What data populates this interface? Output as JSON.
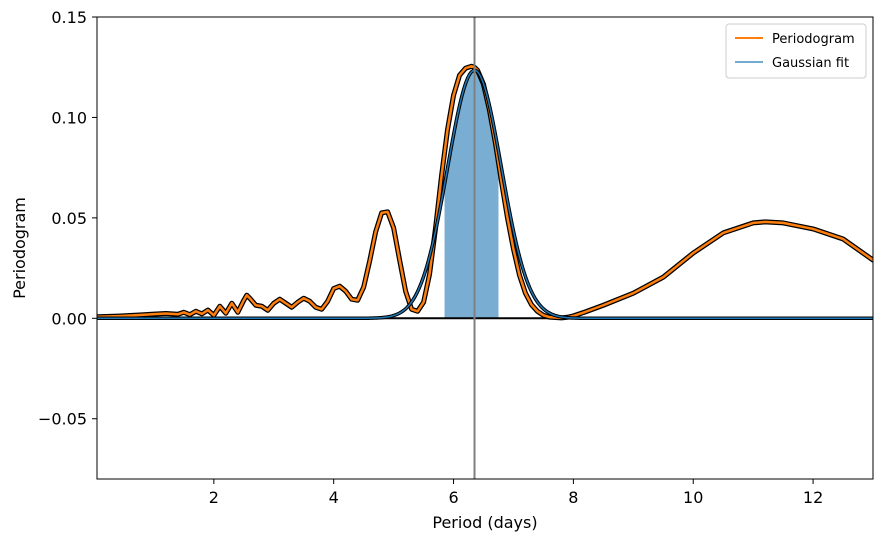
{
  "chart_data": {
    "type": "line",
    "title": "",
    "xlabel": "Period (days)",
    "ylabel": "Periodogram",
    "xlim": [
      0.05,
      13.0
    ],
    "ylim": [
      -0.08,
      0.15
    ],
    "x_ticks": [
      2,
      4,
      6,
      8,
      10,
      12
    ],
    "x_tick_labels": [
      "2",
      "4",
      "6",
      "8",
      "10",
      "12"
    ],
    "y_ticks": [
      -0.05,
      0.0,
      0.05,
      0.1,
      0.15
    ],
    "y_tick_labels": [
      "−0.05",
      "0.00",
      "0.05",
      "0.10",
      "0.15"
    ],
    "grid": false,
    "legend_position": "top-right",
    "series": [
      {
        "name": "Periodogram",
        "color": "#ff7f0e",
        "x": [
          0.05,
          0.2,
          0.4,
          0.6,
          0.8,
          1.0,
          1.2,
          1.4,
          1.5,
          1.6,
          1.7,
          1.8,
          1.9,
          2.0,
          2.1,
          2.2,
          2.3,
          2.4,
          2.5,
          2.55,
          2.6,
          2.7,
          2.8,
          2.9,
          3.0,
          3.1,
          3.2,
          3.3,
          3.4,
          3.5,
          3.6,
          3.7,
          3.8,
          3.9,
          4.0,
          4.1,
          4.2,
          4.3,
          4.4,
          4.5,
          4.6,
          4.7,
          4.8,
          4.9,
          5.0,
          5.1,
          5.2,
          5.3,
          5.4,
          5.5,
          5.6,
          5.7,
          5.8,
          5.9,
          6.0,
          6.1,
          6.2,
          6.3,
          6.35,
          6.4,
          6.5,
          6.6,
          6.7,
          6.8,
          6.9,
          7.0,
          7.1,
          7.2,
          7.3,
          7.4,
          7.5,
          7.6,
          7.7,
          7.8,
          7.9,
          8.0,
          8.2,
          8.5,
          9.0,
          9.5,
          10.0,
          10.5,
          11.0,
          11.2,
          11.5,
          12.0,
          12.5,
          13.0
        ],
        "values": [
          0.0008,
          0.0009,
          0.0011,
          0.0014,
          0.0017,
          0.0021,
          0.0024,
          0.002,
          0.003,
          0.0018,
          0.0035,
          0.0022,
          0.0041,
          0.0015,
          0.006,
          0.0025,
          0.0075,
          0.003,
          0.009,
          0.0115,
          0.01,
          0.0065,
          0.006,
          0.004,
          0.0075,
          0.0095,
          0.0075,
          0.0055,
          0.008,
          0.01,
          0.0085,
          0.0055,
          0.0045,
          0.0085,
          0.0148,
          0.016,
          0.0135,
          0.0095,
          0.009,
          0.0155,
          0.0285,
          0.043,
          0.0525,
          0.053,
          0.045,
          0.029,
          0.0135,
          0.0045,
          0.0035,
          0.008,
          0.022,
          0.045,
          0.071,
          0.094,
          0.111,
          0.121,
          0.1245,
          0.1255,
          0.125,
          0.1235,
          0.1165,
          0.1035,
          0.087,
          0.068,
          0.05,
          0.0345,
          0.0215,
          0.0125,
          0.0068,
          0.0035,
          0.0015,
          0.0006,
          0.0004,
          0.0002,
          0.0005,
          0.0012,
          0.0032,
          0.0065,
          0.0125,
          0.0205,
          0.0325,
          0.0425,
          0.0475,
          0.048,
          0.0475,
          0.0445,
          0.0395,
          0.029
        ]
      },
      {
        "name": "Gaussian fit",
        "color": "#1f77b4",
        "amplitude": 0.1235,
        "mean": 6.35,
        "sigma": 0.45
      }
    ],
    "shaded_region": {
      "x_range": [
        5.85,
        6.75
      ],
      "color": "#1f77b4",
      "opacity": 0.6
    },
    "vertical_line": {
      "x": 6.35,
      "color": "#7f7f7f"
    },
    "horizontal_line": {
      "y": 0.0,
      "color": "#000000"
    }
  }
}
